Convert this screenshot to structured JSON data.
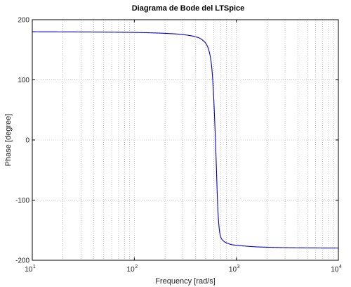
{
  "chart_data": {
    "type": "line",
    "title": "Diagrama de Bode del LTSpice",
    "xlabel": "Frequency [rad/s]",
    "ylabel": "Phase [degree]",
    "xscale": "log",
    "xlim": [
      10,
      10000
    ],
    "ylim": [
      -200,
      200
    ],
    "x_ticks": [
      {
        "base": "10",
        "exp": "1",
        "value": 10
      },
      {
        "base": "10",
        "exp": "2",
        "value": 100
      },
      {
        "base": "10",
        "exp": "3",
        "value": 1000
      },
      {
        "base": "10",
        "exp": "4",
        "value": 10000
      }
    ],
    "y_ticks": [
      {
        "label": "200",
        "value": 200
      },
      {
        "label": "100",
        "value": 100
      },
      {
        "label": "0",
        "value": 0
      },
      {
        "label": "-100",
        "value": -100
      },
      {
        "label": "-200",
        "value": -200
      }
    ],
    "grid": true,
    "colors": {
      "series": "#0000cc",
      "grid": "#9a9a9a",
      "axes": "#000000"
    },
    "series": [
      {
        "x": [
          10,
          20,
          50,
          100,
          150,
          200,
          300,
          400,
          450,
          500,
          520,
          540,
          560,
          580,
          600,
          610,
          620,
          630,
          640,
          650,
          660,
          680,
          700,
          750,
          800,
          900,
          1000,
          1500,
          2000,
          3000,
          5000,
          10000
        ],
        "y": [
          180,
          179.8,
          179.4,
          178.8,
          178.1,
          177.3,
          175.2,
          171.5,
          168,
          161,
          156,
          148,
          135,
          112,
          70,
          42,
          12,
          -20,
          -55,
          -90,
          -118,
          -148,
          -160,
          -168,
          -171,
          -174,
          -175,
          -177.5,
          -178.3,
          -179,
          -179.4,
          -179.7
        ]
      }
    ]
  }
}
